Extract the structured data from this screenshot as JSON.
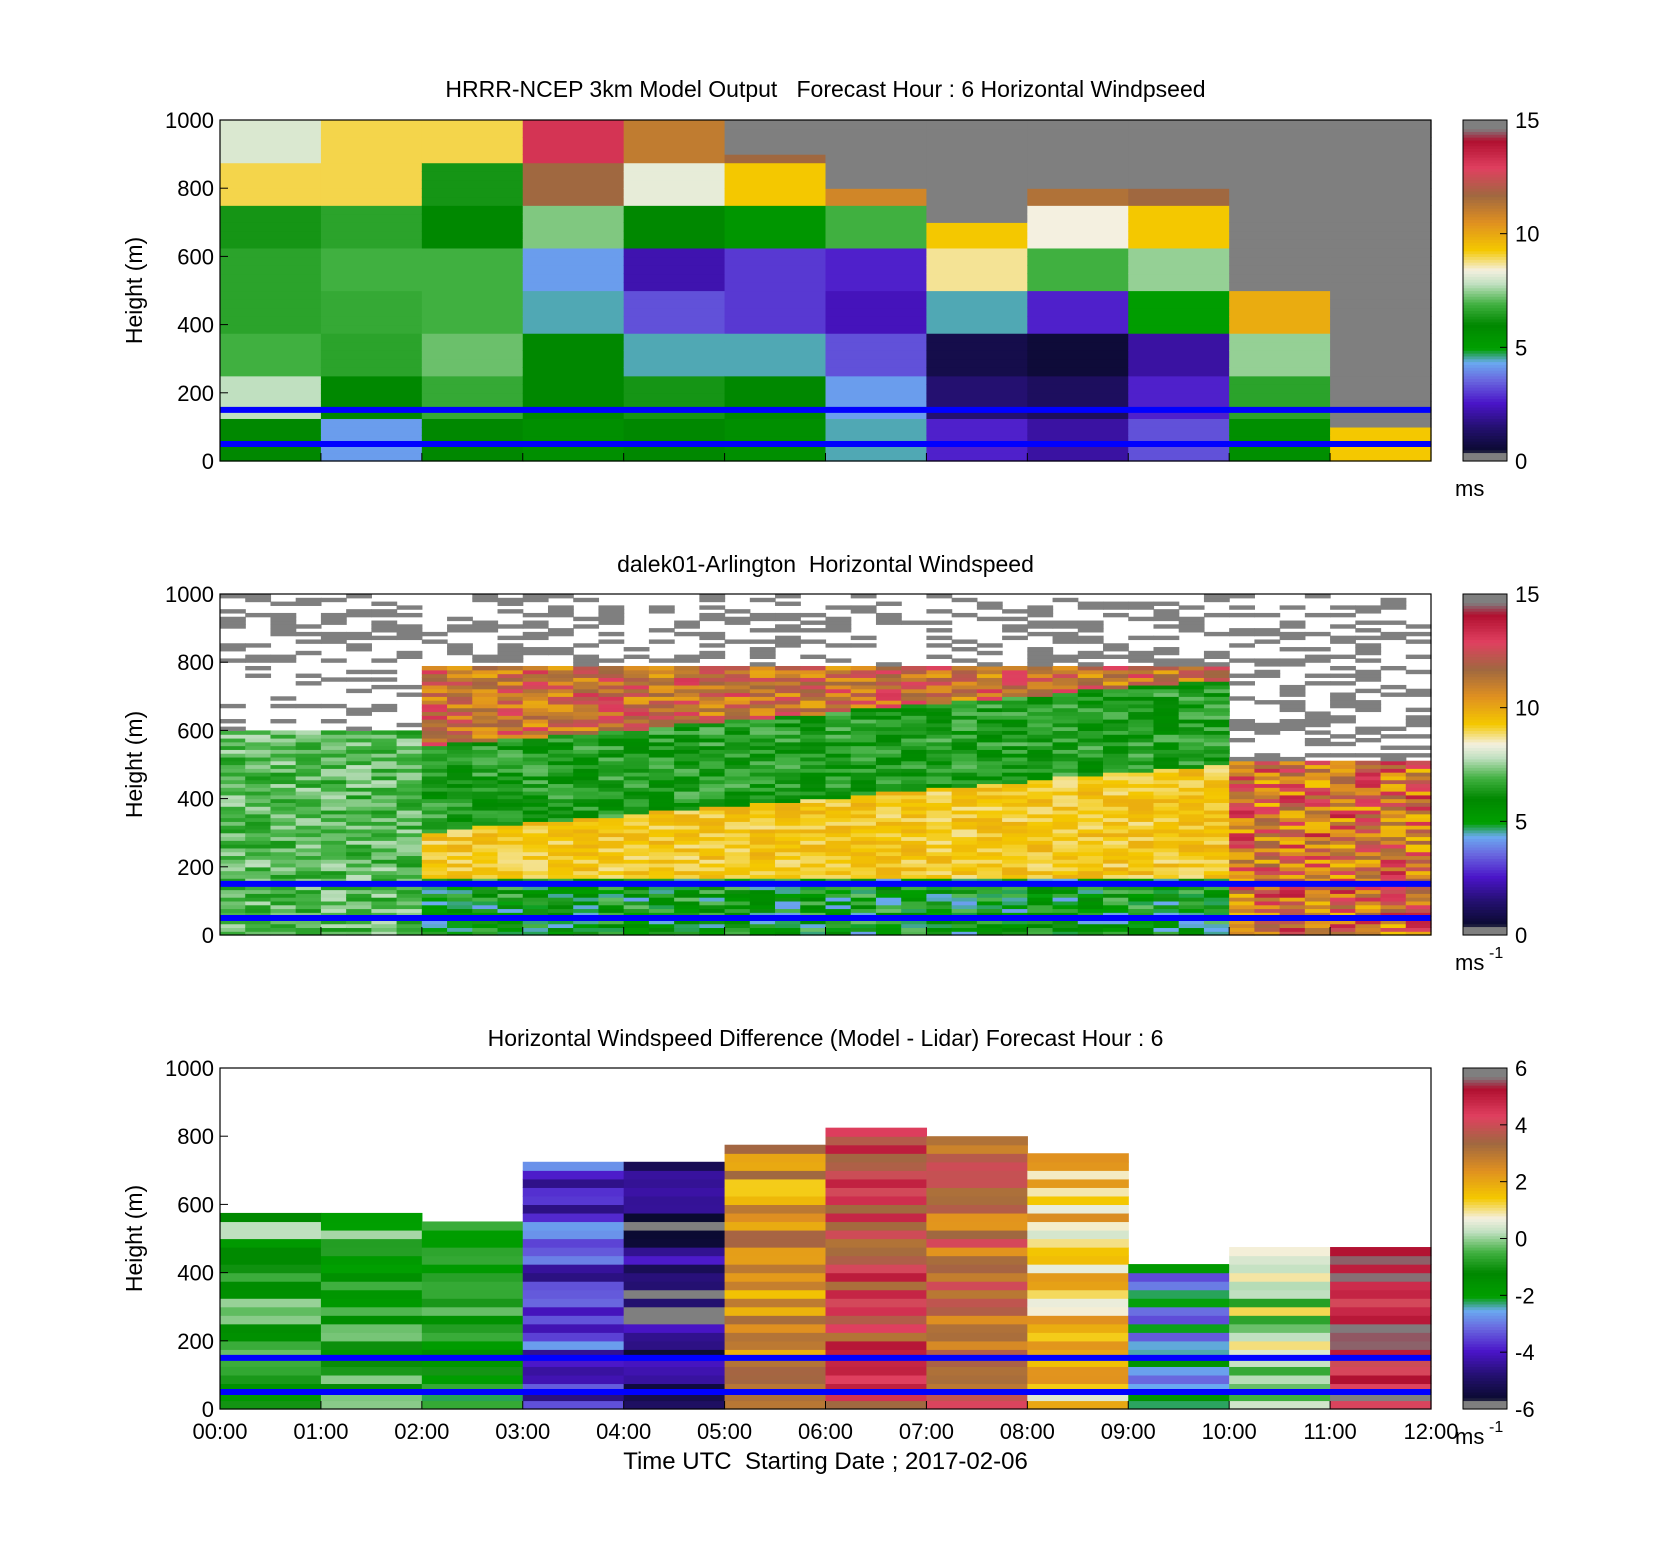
{
  "chart_data": [
    {
      "type": "heatmap",
      "title": "HRRR-NCEP 3km Model Output   Forecast Hour : 6 Horizontal Windpseed",
      "ylabel": "Height (m)",
      "ylim": [
        0,
        1000
      ],
      "yticks": [
        "0",
        "200",
        "400",
        "600",
        "800",
        "1000"
      ],
      "colorbar": {
        "min": 0,
        "max": 15,
        "ticks": [
          "0",
          "5",
          "10",
          "15"
        ],
        "unit": "ms",
        "unit_sup": ""
      },
      "reference_lines_m": [
        150,
        50
      ],
      "x_bins": 12,
      "column_tops_m": [
        1000,
        1000,
        1000,
        1000,
        1000,
        900,
        800,
        700,
        800,
        800,
        500,
        100
      ],
      "description_values": "approximate windspeed (m/s) per hourly column, sampled bottom-to-top every ~50 m"
    },
    {
      "type": "heatmap",
      "title": "dalek01-Arlington  Horizontal Windspeed",
      "ylabel": "Height (m)",
      "ylim": [
        0,
        1000
      ],
      "yticks": [
        "0",
        "200",
        "400",
        "600",
        "800",
        "1000"
      ],
      "colorbar": {
        "min": 0,
        "max": 15,
        "ticks": [
          "0",
          "5",
          "10",
          "15"
        ],
        "unit": "ms",
        "unit_sup": "-1"
      },
      "reference_lines_m": [
        150,
        50
      ],
      "x_bins": 48
    },
    {
      "type": "heatmap",
      "title": "Horizontal Windspeed Difference (Model - Lidar) Forecast Hour : 6",
      "ylabel": "Height (m)",
      "xlabel": "Time UTC  Starting Date ; 2017-02-06",
      "ylim": [
        0,
        1000
      ],
      "yticks": [
        "0",
        "200",
        "400",
        "600",
        "800",
        "1000"
      ],
      "xticks": [
        "00:00",
        "01:00",
        "02:00",
        "03:00",
        "04:00",
        "05:00",
        "06:00",
        "07:00",
        "08:00",
        "09:00",
        "10:00",
        "11:00",
        "12:00"
      ],
      "colorbar": {
        "min": -6,
        "max": 6,
        "ticks": [
          "-6",
          "-4",
          "-2",
          "0",
          "2",
          "4",
          "6"
        ],
        "unit": "ms",
        "unit_sup": "-1"
      },
      "reference_lines_m": [
        150,
        50
      ],
      "x_bins": 12,
      "column_tops_m": [
        560,
        550,
        530,
        720,
        720,
        760,
        820,
        790,
        730,
        400,
        450,
        460
      ]
    }
  ]
}
